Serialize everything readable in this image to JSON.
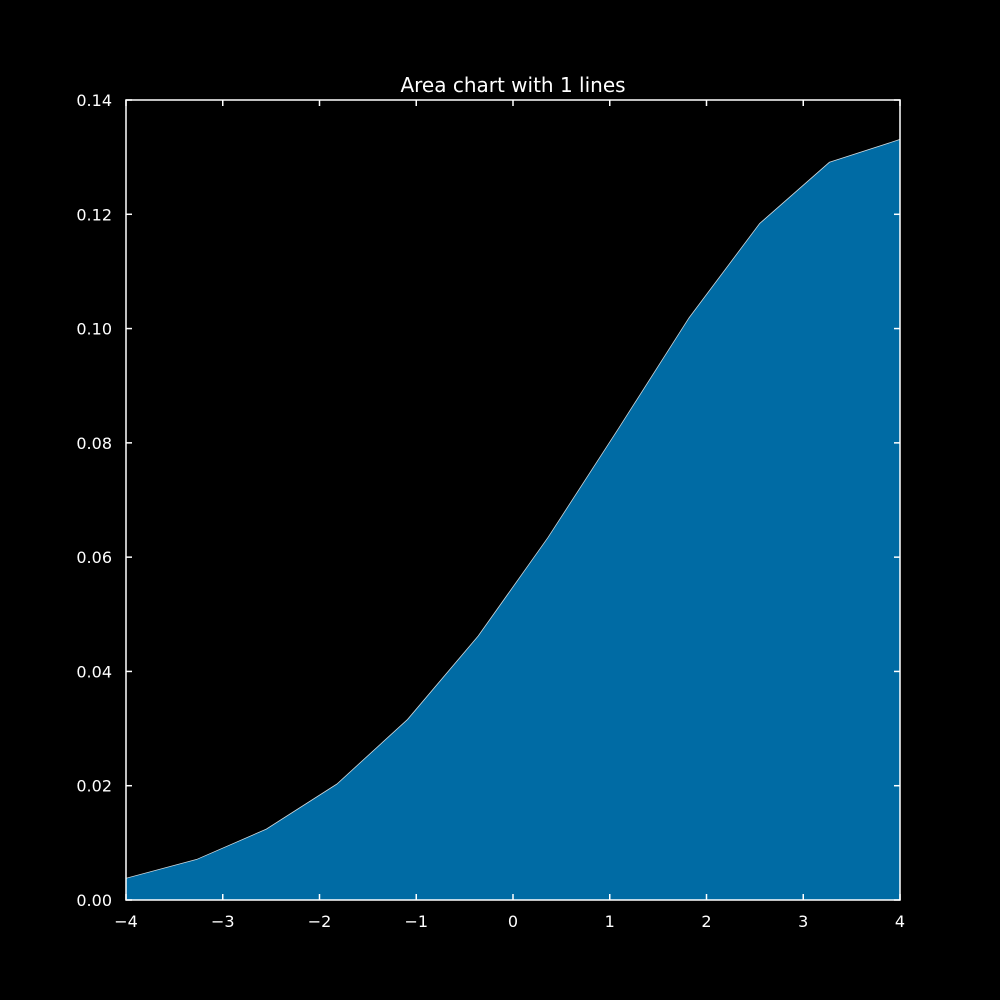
{
  "chart_data": {
    "type": "area",
    "title": "Area chart with 1 lines",
    "xlabel": "",
    "ylabel": "",
    "xlim": [
      -4,
      4
    ],
    "ylim": [
      0,
      0.14
    ],
    "x_ticks": [
      -4,
      -3,
      -2,
      -1,
      0,
      1,
      2,
      3,
      4
    ],
    "x_tick_labels": [
      "−4",
      "−3",
      "−2",
      "−1",
      "0",
      "1",
      "2",
      "3",
      "4"
    ],
    "y_ticks": [
      0,
      0.02,
      0.04,
      0.06,
      0.08,
      0.1,
      0.12,
      0.14
    ],
    "y_tick_labels": [
      "0.00",
      "0.02",
      "0.04",
      "0.06",
      "0.08",
      "0.10",
      "0.12",
      "0.14"
    ],
    "grid": false,
    "legend": "none",
    "x": [
      -4.0,
      -3.27,
      -2.55,
      -1.82,
      -1.09,
      -0.36,
      0.36,
      1.09,
      1.82,
      2.55,
      3.27,
      4.0
    ],
    "series": [
      {
        "color": "#006ba4",
        "values": [
          0.0038,
          0.0071,
          0.0124,
          0.0203,
          0.0316,
          0.0462,
          0.0634,
          0.0825,
          0.1019,
          0.1184,
          0.1291,
          0.1331
        ]
      }
    ],
    "colors": {
      "background": "#000000",
      "axes": "#ffffff",
      "text": "#ffffff"
    }
  }
}
